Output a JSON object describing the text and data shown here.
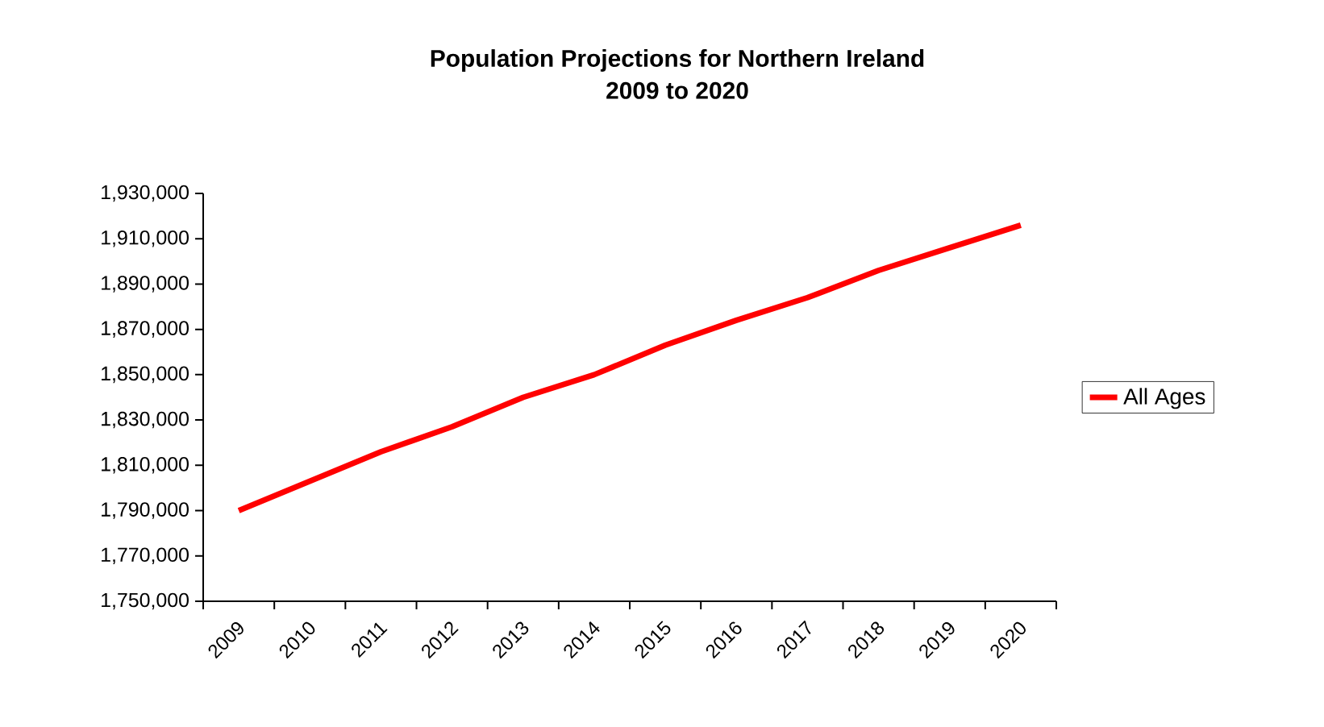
{
  "chart_data": {
    "type": "line",
    "title": "Population Projections for Northern Ireland\n2009 to 2020",
    "categories": [
      "2009",
      "2010",
      "2011",
      "2012",
      "2013",
      "2014",
      "2015",
      "2016",
      "2017",
      "2018",
      "2019",
      "2020"
    ],
    "series": [
      {
        "name": "All Ages",
        "color": "#ff0000",
        "values": [
          1790000,
          1803000,
          1816000,
          1827000,
          1840000,
          1850000,
          1863000,
          1874000,
          1884000,
          1896000,
          1906000,
          1916000
        ]
      }
    ],
    "ylim": [
      1750000,
      1930000
    ],
    "yticks": [
      {
        "value": 1750000,
        "label": "1,750,000"
      },
      {
        "value": 1770000,
        "label": "1,770,000"
      },
      {
        "value": 1790000,
        "label": "1,790,000"
      },
      {
        "value": 1810000,
        "label": "1,810,000"
      },
      {
        "value": 1830000,
        "label": "1,830,000"
      },
      {
        "value": 1850000,
        "label": "1,850,000"
      },
      {
        "value": 1870000,
        "label": "1,870,000"
      },
      {
        "value": 1890000,
        "label": "1,890,000"
      },
      {
        "value": 1910000,
        "label": "1,910,000"
      },
      {
        "value": 1930000,
        "label": "1,930,000"
      }
    ],
    "grid": false,
    "legend": "right",
    "marker": "none",
    "line_style": "solid"
  }
}
